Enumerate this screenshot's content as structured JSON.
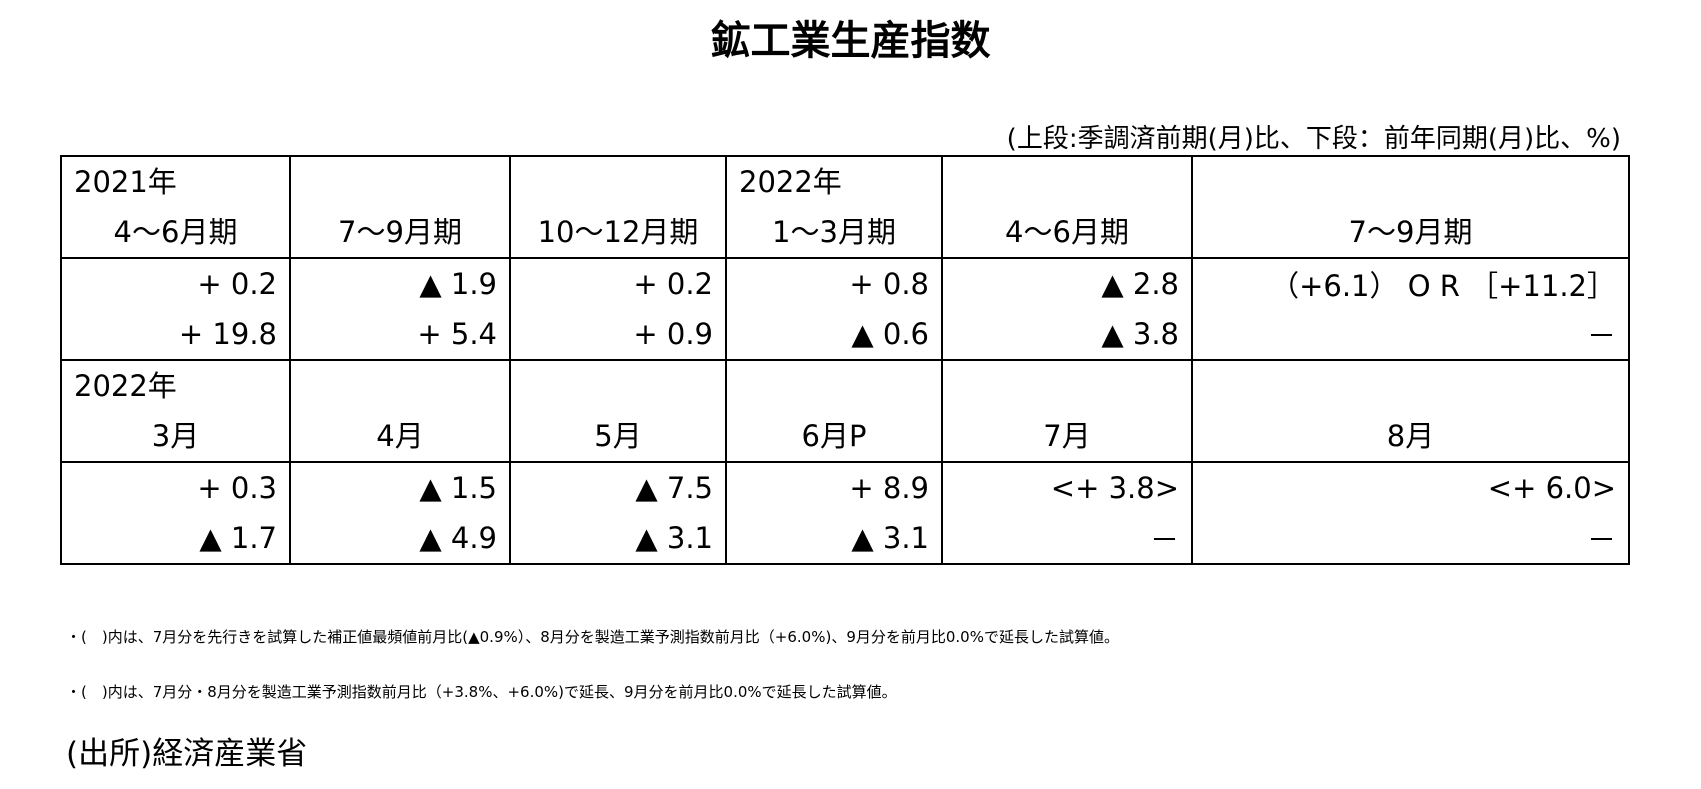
{
  "title": "鉱工業生産指数",
  "unit_note": "(上段:季調済前期(月)比、下段：前年同期(月)比、%)",
  "table": {
    "blocks": [
      {
        "headers": [
          {
            "year": "2021年",
            "period": "4～6月期"
          },
          {
            "period": "7～9月期"
          },
          {
            "period": "10～12月期"
          },
          {
            "year": "2022年",
            "period": "1～3月期"
          },
          {
            "period": "4～6月期"
          },
          {
            "period": "7～9月期"
          }
        ],
        "lines": [
          [
            "+ 0.2",
            "▲ 1.9",
            "+ 0.2",
            "+ 0.8",
            "▲ 2.8",
            "（+6.1） O R ［+11.2］"
          ],
          [
            "+ 19.8",
            "+ 5.4",
            "+ 0.9",
            "▲ 0.6",
            "▲ 3.8",
            "－"
          ]
        ]
      },
      {
        "headers": [
          {
            "year": "2022年",
            "period": "3月"
          },
          {
            "period": "4月"
          },
          {
            "period": "5月"
          },
          {
            "period": "6月P"
          },
          {
            "period": "7月"
          },
          {
            "period": "8月"
          }
        ],
        "lines": [
          [
            "+ 0.3",
            "▲ 1.5",
            "▲ 7.5",
            "+ 8.9",
            "<+ 3.8>",
            "<+ 6.0>"
          ],
          [
            "▲ 1.7",
            "▲ 4.9",
            "▲ 3.1",
            "▲ 3.1",
            "－",
            "－"
          ]
        ]
      }
    ]
  },
  "notes": [
    "・(　)内は、7月分を先行きを試算した補正値最頻値前月比(▲0.9%）、8月分を製造工業予測指数前月比（+6.0%)、9月分を前月比0.0%で延長した試算値。",
    "・(　)内は、7月分・8月分を製造工業予測指数前月比（+3.8%、+6.0%)で延長、9月分を前月比0.0%で延長した試算値。"
  ],
  "source": "(出所)経済産業省"
}
